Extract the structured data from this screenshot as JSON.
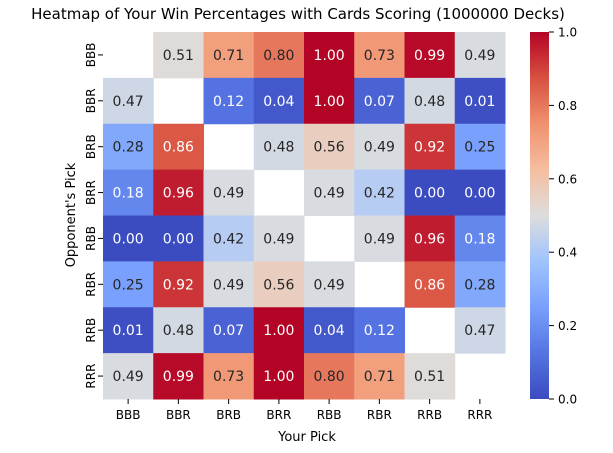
{
  "chart_data": {
    "type": "heatmap",
    "title": "Heatmap of Your Win Percentages with Cards Scoring (1000000 Decks)",
    "xlabel": "Your Pick",
    "ylabel": "Opponent's Pick",
    "x_categories": [
      "BBB",
      "BBR",
      "BRB",
      "BRR",
      "RBB",
      "RBR",
      "RRB",
      "RRR"
    ],
    "y_categories": [
      "BBB",
      "BBR",
      "BRB",
      "BRR",
      "RBB",
      "RBR",
      "RRB",
      "RRR"
    ],
    "values": [
      [
        null,
        0.51,
        0.71,
        0.8,
        1.0,
        0.73,
        0.99,
        0.49
      ],
      [
        0.47,
        null,
        0.12,
        0.04,
        1.0,
        0.07,
        0.48,
        0.01
      ],
      [
        0.28,
        0.86,
        null,
        0.48,
        0.56,
        0.49,
        0.92,
        0.25
      ],
      [
        0.18,
        0.96,
        0.49,
        null,
        0.49,
        0.42,
        0.0,
        0.0
      ],
      [
        0.0,
        0.0,
        0.42,
        0.49,
        null,
        0.49,
        0.96,
        0.18
      ],
      [
        0.25,
        0.92,
        0.49,
        0.56,
        0.49,
        null,
        0.86,
        0.28
      ],
      [
        0.01,
        0.48,
        0.07,
        1.0,
        0.04,
        0.12,
        null,
        0.47
      ],
      [
        0.49,
        0.99,
        0.73,
        1.0,
        0.8,
        0.71,
        0.51,
        null
      ]
    ],
    "value_format": "0.00",
    "colormap": "coolwarm",
    "colorbar": {
      "range": [
        0.0,
        1.0
      ],
      "ticks": [
        "0.0",
        "0.2",
        "0.4",
        "0.6",
        "0.8",
        "1.0"
      ]
    },
    "grid": false
  }
}
